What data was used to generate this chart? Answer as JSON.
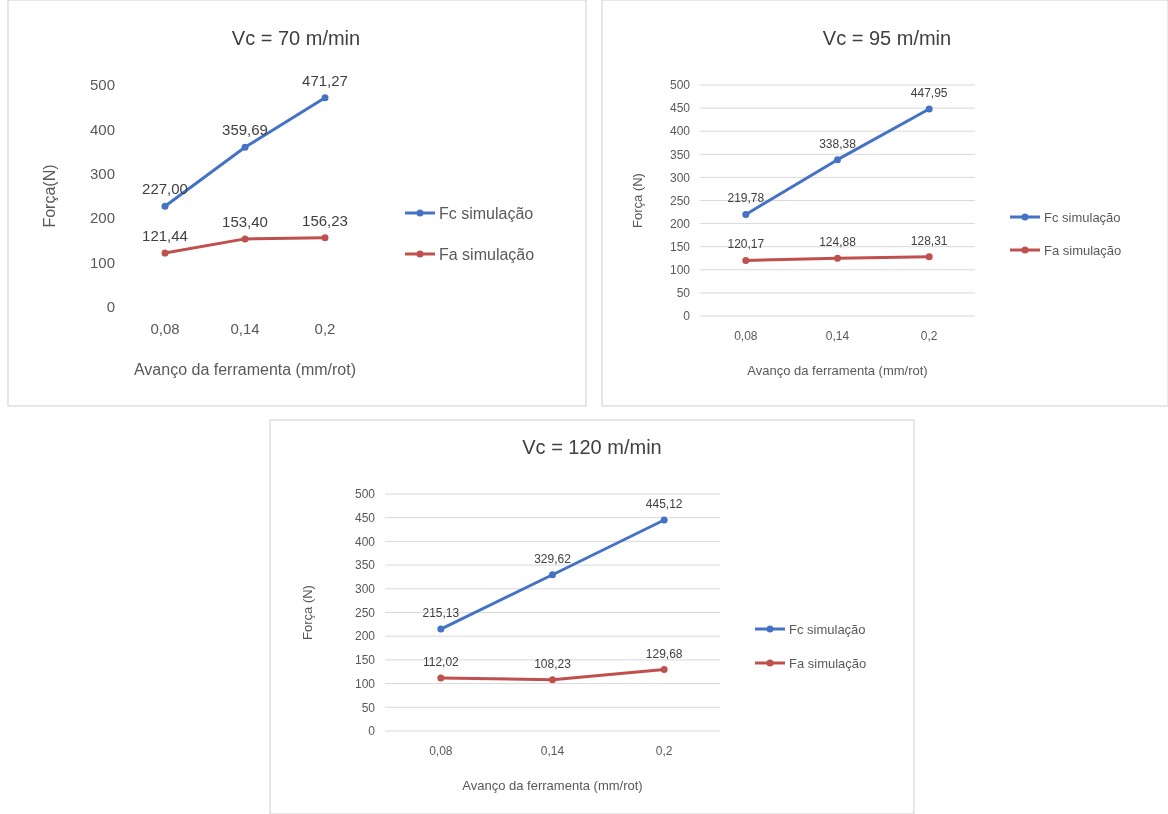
{
  "chart_data": [
    {
      "type": "line",
      "title": "Vc = 70 m/min",
      "xlabel": "Avanço da ferramenta (mm/rot)",
      "ylabel": "Força(N)",
      "categories": [
        "0,08",
        "0,14",
        "0,2"
      ],
      "ylim": [
        0,
        500
      ],
      "yticks": [
        0,
        100,
        200,
        300,
        400,
        500
      ],
      "grid": false,
      "legend": "right",
      "marker": "circle",
      "series": [
        {
          "name": "Fc simulação",
          "color": "#4472c4",
          "values": [
            227.0,
            359.69,
            471.27
          ],
          "value_labels": [
            "227,00",
            "359,69",
            "471,27"
          ]
        },
        {
          "name": "Fa simulação",
          "color": "#c0504d",
          "values": [
            121.44,
            153.4,
            156.23
          ],
          "value_labels": [
            "121,44",
            "153,40",
            "156,23"
          ]
        }
      ]
    },
    {
      "type": "line",
      "title": "Vc = 95 m/min",
      "xlabel": "Avanço da ferramenta (mm/rot)",
      "ylabel": "Força (N)",
      "categories": [
        "0,08",
        "0,14",
        "0,2"
      ],
      "ylim": [
        0,
        500
      ],
      "yticks": [
        0,
        50,
        100,
        150,
        200,
        250,
        300,
        350,
        400,
        450,
        500
      ],
      "grid": "y",
      "legend": "right",
      "marker": "circle",
      "series": [
        {
          "name": "Fc simulação",
          "color": "#4472c4",
          "values": [
            219.78,
            338.38,
            447.95
          ],
          "value_labels": [
            "219,78",
            "338,38",
            "447,95"
          ]
        },
        {
          "name": "Fa simulação",
          "color": "#c0504d",
          "values": [
            120.17,
            124.88,
            128.31
          ],
          "value_labels": [
            "120,17",
            "124,88",
            "128,31"
          ]
        }
      ]
    },
    {
      "type": "line",
      "title": "Vc = 120 m/min",
      "xlabel": "Avanço da ferramenta (mm/rot)",
      "ylabel": "Força (N)",
      "categories": [
        "0,08",
        "0,14",
        "0,2"
      ],
      "ylim": [
        0,
        500
      ],
      "yticks": [
        0,
        50,
        100,
        150,
        200,
        250,
        300,
        350,
        400,
        450,
        500
      ],
      "grid": "y",
      "legend": "right",
      "marker": "circle",
      "series": [
        {
          "name": "Fc simulação",
          "color": "#4472c4",
          "values": [
            215.13,
            329.62,
            445.12
          ],
          "value_labels": [
            "215,13",
            "329,62",
            "445,12"
          ]
        },
        {
          "name": "Fa simulação",
          "color": "#c0504d",
          "values": [
            112.02,
            108.23,
            129.68
          ],
          "value_labels": [
            "112,02",
            "108,23",
            "129,68"
          ]
        }
      ]
    }
  ]
}
